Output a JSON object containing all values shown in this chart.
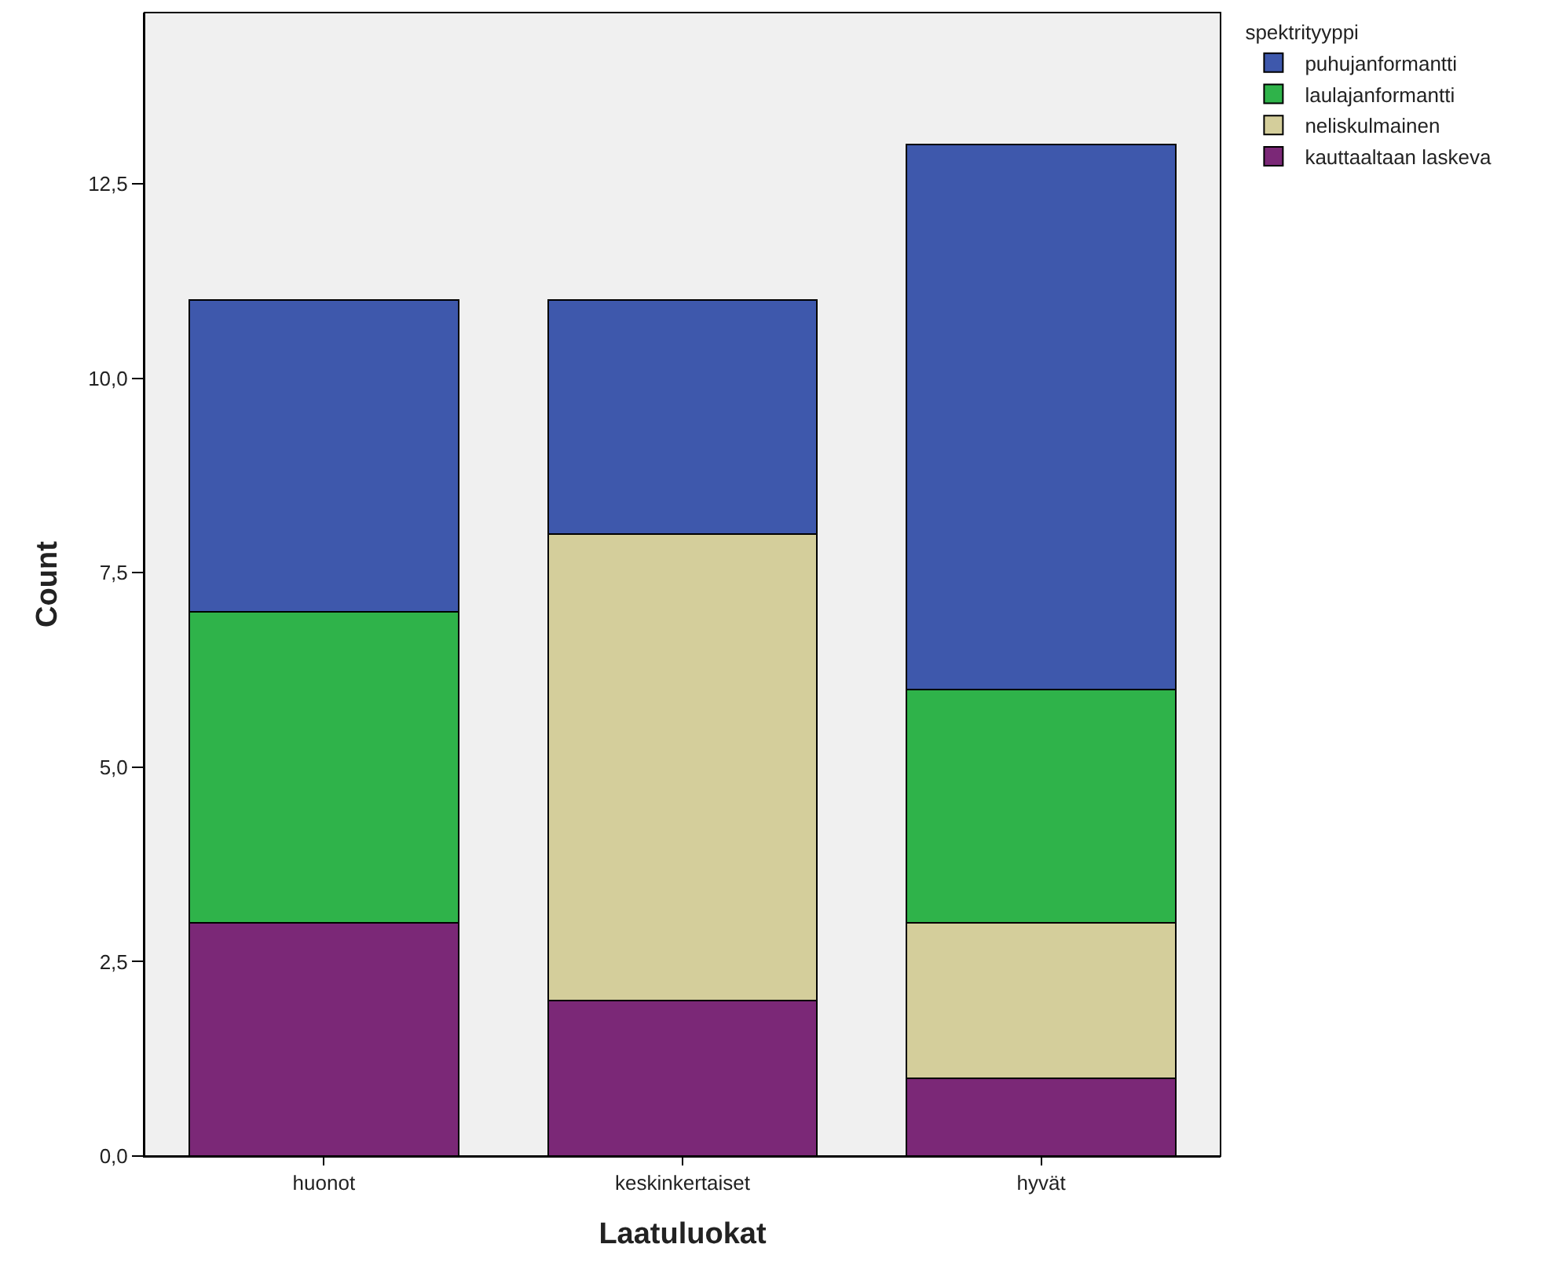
{
  "chart_data": {
    "type": "bar",
    "stacked": true,
    "xlabel": "Laatuluokat",
    "ylabel": "Count",
    "legend_title": "spektrityyppi",
    "legend": "top right",
    "grid": false,
    "categories": [
      "huonot",
      "keskinkertaiset",
      "hyvät"
    ],
    "series": [
      {
        "name": "kauttaaltaan laskeva",
        "color": "#7b2877",
        "values": [
          3,
          2,
          1
        ]
      },
      {
        "name": "neliskulmainen",
        "color": "#d4ce9b",
        "values": [
          0,
          6,
          2
        ]
      },
      {
        "name": "laulajanformantti",
        "color": "#2fb34a",
        "values": [
          4,
          0,
          3
        ]
      },
      {
        "name": "puhujanformantti",
        "color": "#3e58ac",
        "values": [
          4,
          3,
          7
        ]
      }
    ],
    "ylim": [
      0,
      14.7
    ],
    "yticks": [
      {
        "value": 0,
        "label": "0,0"
      },
      {
        "value": 2.5,
        "label": "2,5"
      },
      {
        "value": 5,
        "label": "5,0"
      },
      {
        "value": 7.5,
        "label": "7,5"
      },
      {
        "value": 10,
        "label": "10,0"
      },
      {
        "value": 12.5,
        "label": "12,5"
      }
    ]
  }
}
